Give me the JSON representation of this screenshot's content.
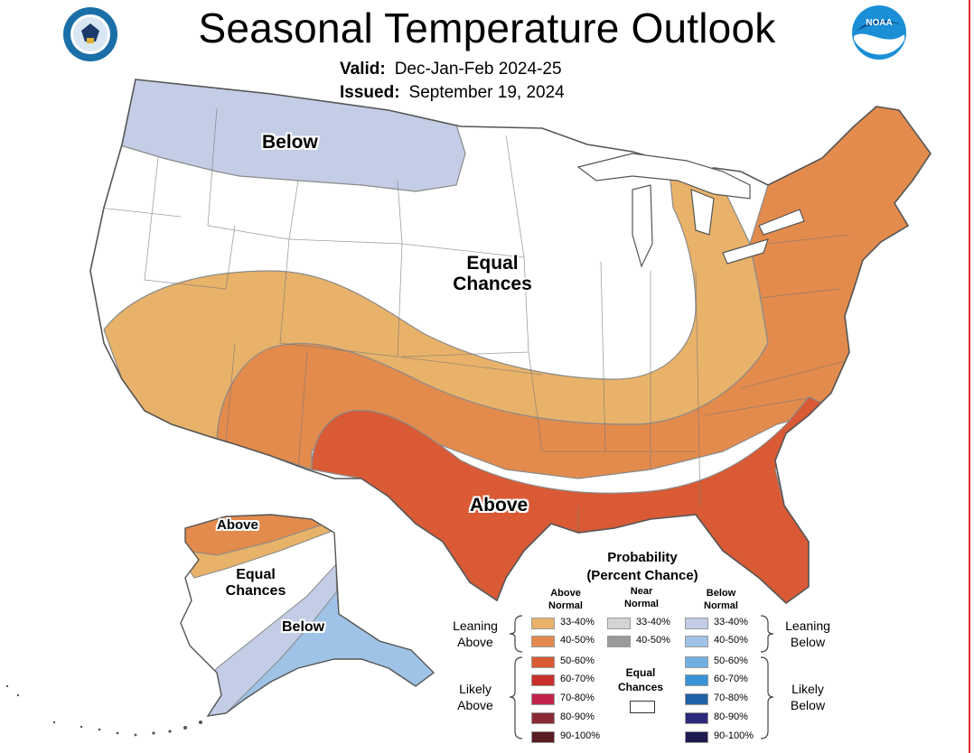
{
  "header": {
    "title": "Seasonal Temperature Outlook",
    "valid_label": "Valid:",
    "valid_value": "Dec-Jan-Feb 2024-25",
    "issued_label": "Issued:",
    "issued_value": "September 19, 2024"
  },
  "logos": {
    "left": "department-of-commerce-seal",
    "right": "noaa-logo",
    "right_text": "NOAA"
  },
  "map_labels": {
    "conus_below": "Below",
    "conus_equal_1": "Equal",
    "conus_equal_2": "Chances",
    "conus_above": "Above",
    "ak_above": "Above",
    "ak_equal_1": "Equal",
    "ak_equal_2": "Chances",
    "ak_below": "Below"
  },
  "legend": {
    "title_1": "Probability",
    "title_2": "(Percent Chance)",
    "above_head_1": "Above",
    "above_head_2": "Normal",
    "near_head_1": "Near",
    "near_head_2": "Normal",
    "below_head_1": "Below",
    "below_head_2": "Normal",
    "leaning_above_1": "Leaning",
    "leaning_above_2": "Above",
    "likely_above_1": "Likely",
    "likely_above_2": "Above",
    "leaning_below_1": "Leaning",
    "leaning_below_2": "Below",
    "likely_below_1": "Likely",
    "likely_below_2": "Below",
    "equal_1": "Equal",
    "equal_2": "Chances",
    "above": [
      {
        "label": "33-40%",
        "color": "#e8b26a"
      },
      {
        "label": "40-50%",
        "color": "#e38b4c"
      },
      {
        "label": "50-60%",
        "color": "#d95a35"
      },
      {
        "label": "60-70%",
        "color": "#c9302c"
      },
      {
        "label": "70-80%",
        "color": "#c2234a"
      },
      {
        "label": "80-90%",
        "color": "#8b2a36"
      },
      {
        "label": "90-100%",
        "color": "#5a1b22"
      }
    ],
    "near": [
      {
        "label": "33-40%",
        "color": "#d4d4d4"
      },
      {
        "label": "40-50%",
        "color": "#9a9a9a"
      }
    ],
    "below": [
      {
        "label": "33-40%",
        "color": "#c3cde6"
      },
      {
        "label": "40-50%",
        "color": "#9fc3e6"
      },
      {
        "label": "50-60%",
        "color": "#6fb0e0"
      },
      {
        "label": "60-70%",
        "color": "#3a93d6"
      },
      {
        "label": "70-80%",
        "color": "#1f62a8"
      },
      {
        "label": "80-90%",
        "color": "#2c2a7a"
      },
      {
        "label": "90-100%",
        "color": "#1c1a4e"
      }
    ],
    "equal_color": "#ffffff"
  },
  "colors": {
    "lean_above": "#e8b26a",
    "above_40": "#e38b4c",
    "above_50": "#d95a35",
    "lean_below": "#c3cde6",
    "below_40": "#9fc3e6",
    "equal": "#ffffff",
    "boundary": "#8a8a8a"
  }
}
